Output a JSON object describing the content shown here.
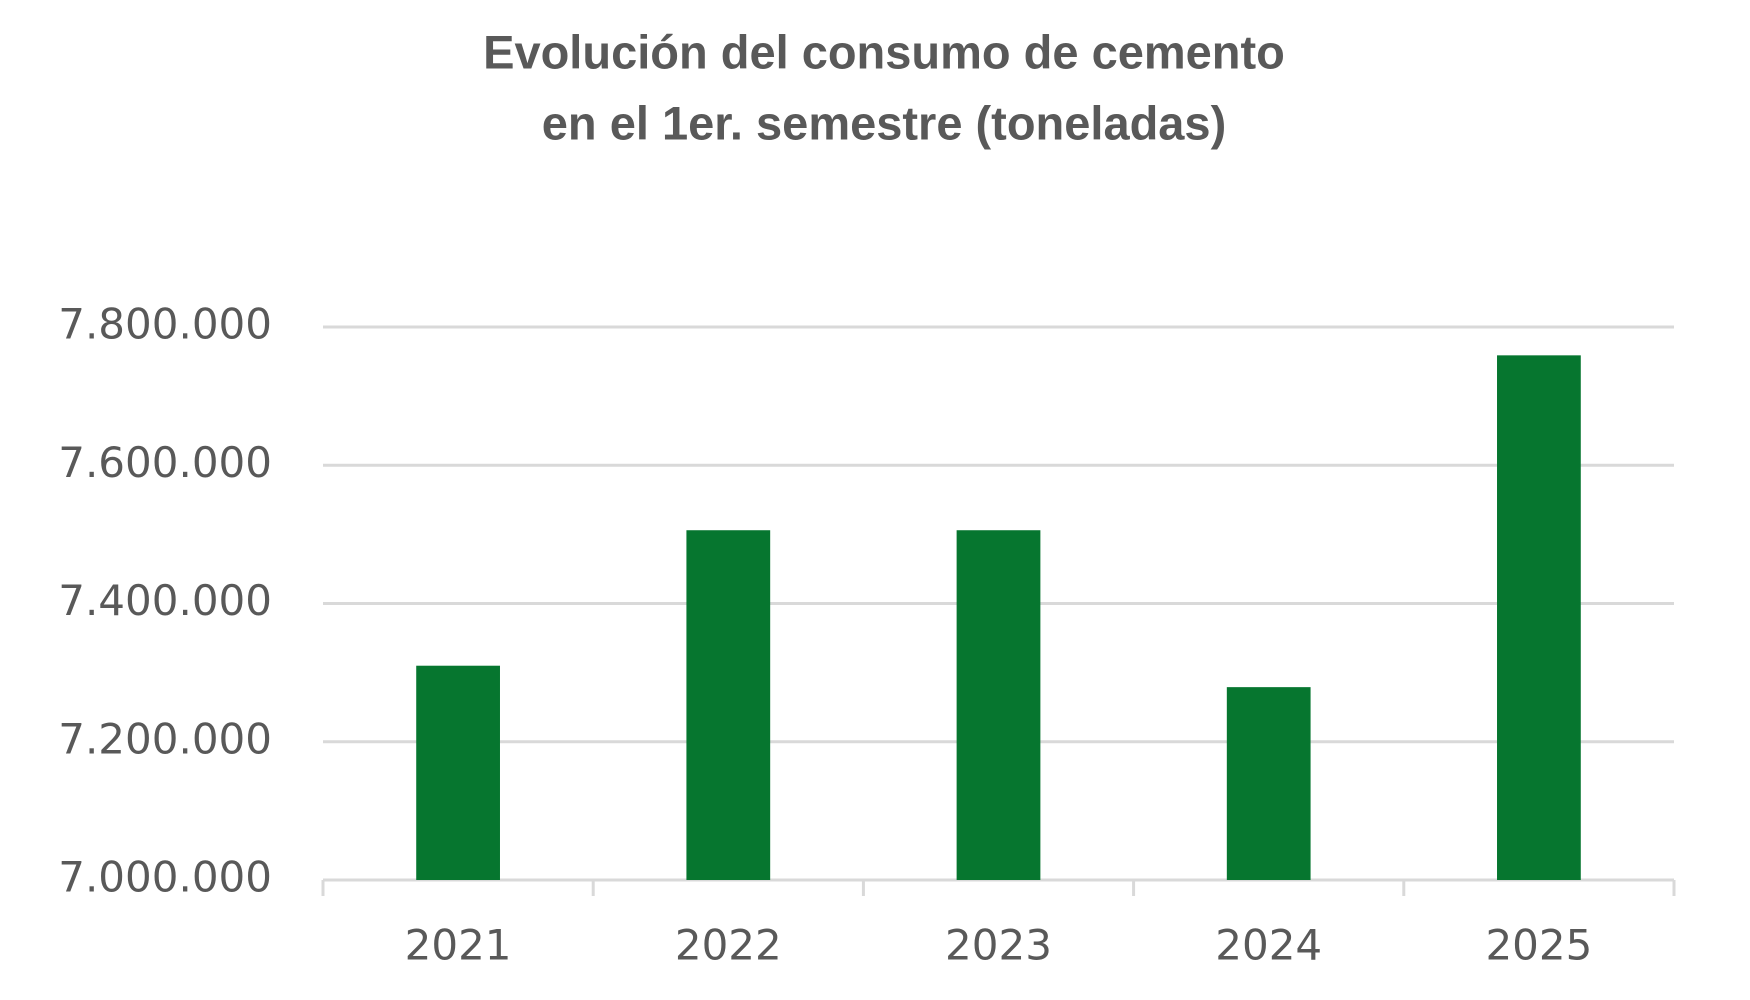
{
  "chart_data": {
    "type": "bar",
    "title": [
      "Evolución del consumo de cemento",
      "en el 1er. semestre (toneladas)"
    ],
    "categories": [
      "2021",
      "2022",
      "2023",
      "2024",
      "2025"
    ],
    "values": [
      7310000,
      7506000,
      7506000,
      7279000,
      7759000
    ],
    "color": "#06762f",
    "ylim": [
      7000000,
      7800000
    ],
    "yticks": [
      {
        "value": 7000000,
        "label": "7.000.000"
      },
      {
        "value": 7200000,
        "label": "7.200.000"
      },
      {
        "value": 7400000,
        "label": "7.400.000"
      },
      {
        "value": 7600000,
        "label": "7.600.000"
      },
      {
        "value": 7800000,
        "label": "7.800.000"
      }
    ],
    "grid": true
  }
}
